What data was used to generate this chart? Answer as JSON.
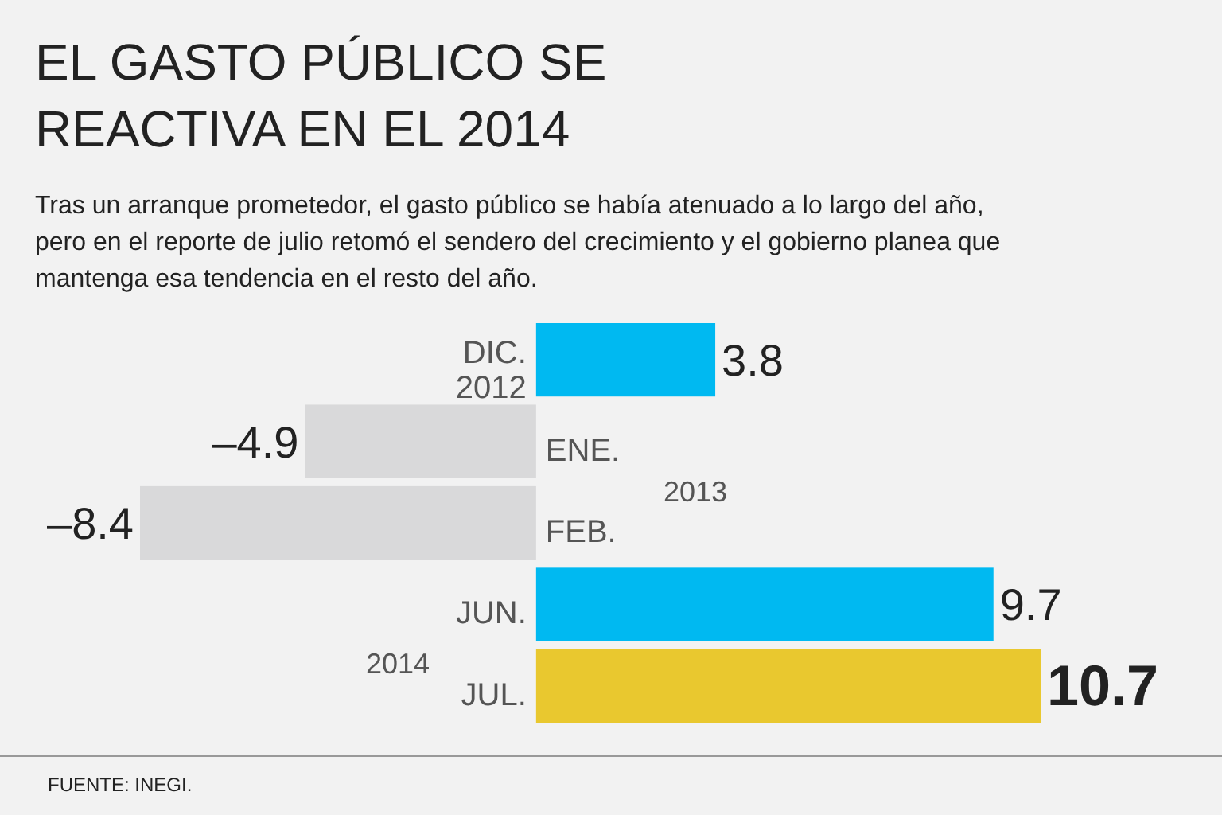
{
  "chart_data": {
    "type": "bar",
    "orientation": "horizontal",
    "title": "EL GASTO PÚBLICO SE REACTIVA EN EL 2014",
    "subtitle": "Tras un arranque prometedor, el gasto público se había atenuado a lo largo del año, pero en el reporte de julio retomó el sendero del crecimiento y el gobierno planea que mantenga esa tendencia en el resto del año.",
    "categories": [
      "DIC. 2012",
      "ENE.",
      "FEB.",
      "JUN.",
      "JUL."
    ],
    "values": [
      3.8,
      -4.9,
      -8.4,
      9.7,
      10.7
    ],
    "colors": [
      "#00b9f1",
      "#d9d9da",
      "#d9d9da",
      "#00b9f1",
      "#e9c82f"
    ],
    "value_labels": [
      "3.8",
      "–4.9",
      "–8.4",
      "9.7",
      "10.7"
    ],
    "annotations": [
      "2013",
      "2014",
      "FUENTE: INEGI."
    ]
  }
}
